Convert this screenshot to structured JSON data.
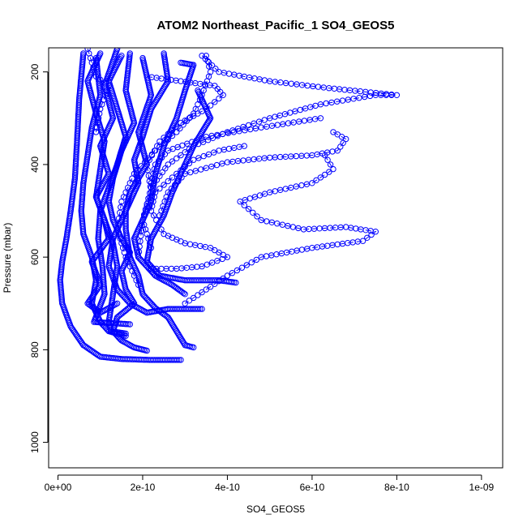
{
  "chart_data": {
    "type": "scatter",
    "title": "ATOM2 Northeast_Pacific_1 SO4_GEOS5",
    "xlabel": "SO4_GEOS5",
    "ylabel": "Pressure (mbar)",
    "xlim": [
      -2.2e-11,
      1.05e-09
    ],
    "ylim": [
      1055,
      148
    ],
    "y_reversed": true,
    "grid": false,
    "marker": "open-circle",
    "series_color": "#0000ff",
    "x_ticks": [
      {
        "value": 0,
        "label": "0e+00"
      },
      {
        "value": 2e-10,
        "label": "2e-10"
      },
      {
        "value": 4e-10,
        "label": "4e-10"
      },
      {
        "value": 6e-10,
        "label": "6e-10"
      },
      {
        "value": 8e-10,
        "label": "8e-10"
      },
      {
        "value": 1e-09,
        "label": "1e-09"
      }
    ],
    "y_ticks": [
      {
        "value": 200,
        "label": "200"
      },
      {
        "value": 400,
        "label": "400"
      },
      {
        "value": 600,
        "label": "600"
      },
      {
        "value": 800,
        "label": "800"
      },
      {
        "value": 1000,
        "label": "1000"
      }
    ],
    "series": [
      {
        "dense": true,
        "points": [
          [
            1.4e-10,
            150
          ],
          [
            1.1e-10,
            230
          ],
          [
            1.3e-10,
            300
          ],
          [
            1e-10,
            360
          ],
          [
            1.2e-10,
            420
          ],
          [
            9e-11,
            470
          ],
          [
            1.1e-10,
            520
          ],
          [
            1.2e-10,
            560
          ],
          [
            8e-11,
            610
          ],
          [
            1e-10,
            660
          ],
          [
            7e-11,
            700
          ],
          [
            1e-10,
            720
          ],
          [
            1.4e-10,
            700
          ]
        ]
      },
      {
        "dense": true,
        "points": [
          [
            6e-11,
            160
          ],
          [
            5e-11,
            260
          ],
          [
            4.5e-11,
            350
          ],
          [
            4e-11,
            430
          ],
          [
            3e-11,
            500
          ],
          [
            2e-11,
            560
          ],
          [
            1e-11,
            610
          ],
          [
            5e-12,
            650
          ],
          [
            1e-11,
            700
          ],
          [
            3e-11,
            750
          ],
          [
            6e-11,
            790
          ],
          [
            1e-10,
            815
          ],
          [
            1.5e-10,
            820
          ],
          [
            2.2e-10,
            822
          ],
          [
            2.9e-10,
            822
          ]
        ]
      },
      {
        "dense": true,
        "points": [
          [
            1.7e-10,
            160
          ],
          [
            1.6e-10,
            240
          ],
          [
            1.8e-10,
            310
          ],
          [
            1.5e-10,
            370
          ],
          [
            1.3e-10,
            430
          ],
          [
            1.2e-10,
            480
          ],
          [
            1.3e-10,
            520
          ],
          [
            1.5e-10,
            560
          ],
          [
            1.7e-10,
            590
          ],
          [
            1.5e-10,
            630
          ],
          [
            1.6e-10,
            670
          ],
          [
            1.8e-10,
            700
          ],
          [
            1.4e-10,
            730
          ],
          [
            1.3e-10,
            760
          ],
          [
            1.5e-10,
            780
          ],
          [
            1.8e-10,
            795
          ],
          [
            2.1e-10,
            802
          ]
        ]
      },
      {
        "dense": true,
        "points": [
          [
            2e-10,
            170
          ],
          [
            2.2e-10,
            250
          ],
          [
            1.9e-10,
            330
          ],
          [
            2.1e-10,
            400
          ],
          [
            1.7e-10,
            460
          ],
          [
            1.6e-10,
            500
          ],
          [
            1.6e-10,
            540
          ],
          [
            1.7e-10,
            600
          ],
          [
            1.9e-10,
            640
          ],
          [
            2e-10,
            680
          ],
          [
            2.3e-10,
            710
          ],
          [
            2.6e-10,
            730
          ],
          [
            2.8e-10,
            760
          ],
          [
            3e-10,
            790
          ],
          [
            3.2e-10,
            795
          ]
        ]
      },
      {
        "dense": true,
        "points": [
          [
            2.9e-10,
            180
          ],
          [
            3.2e-10,
            185
          ],
          [
            3e-10,
            240
          ],
          [
            2.8e-10,
            300
          ],
          [
            2.5e-10,
            360
          ],
          [
            2.3e-10,
            420
          ],
          [
            2.2e-10,
            480
          ],
          [
            2e-10,
            520
          ],
          [
            1.8e-10,
            560
          ],
          [
            1.9e-10,
            600
          ],
          [
            2.3e-10,
            640
          ],
          [
            2.7e-10,
            660
          ],
          [
            3e-10,
            680
          ]
        ]
      },
      {
        "dense": true,
        "points": [
          [
            3.3e-10,
            240
          ],
          [
            3.6e-10,
            300
          ],
          [
            3.2e-10,
            360
          ],
          [
            2.9e-10,
            420
          ],
          [
            2.7e-10,
            460
          ],
          [
            2.5e-10,
            510
          ],
          [
            2.2e-10,
            560
          ],
          [
            2.1e-10,
            610
          ],
          [
            2.4e-10,
            640
          ],
          [
            3e-10,
            650
          ],
          [
            3.8e-10,
            650
          ],
          [
            4.2e-10,
            655
          ]
        ]
      },
      {
        "dense": true,
        "points": [
          [
            9e-11,
            170
          ],
          [
            1e-10,
            250
          ],
          [
            8e-11,
            320
          ],
          [
            7e-11,
            380
          ],
          [
            6e-11,
            440
          ],
          [
            5.5e-11,
            500
          ],
          [
            6e-11,
            550
          ],
          [
            8e-11,
            600
          ],
          [
            9e-11,
            650
          ],
          [
            8e-11,
            700
          ],
          [
            1e-10,
            740
          ],
          [
            1.2e-10,
            760
          ],
          [
            1.6e-10,
            770
          ]
        ]
      },
      {
        "dense": true,
        "points": [
          [
            2.5e-10,
            160
          ],
          [
            2.6e-10,
            220
          ],
          [
            2.2e-10,
            280
          ],
          [
            2e-10,
            340
          ],
          [
            1.8e-10,
            390
          ],
          [
            1.9e-10,
            440
          ],
          [
            1.7e-10,
            480
          ],
          [
            1.5e-10,
            520
          ],
          [
            1.3e-10,
            560
          ],
          [
            1.2e-10,
            620
          ],
          [
            1.4e-10,
            670
          ],
          [
            1.7e-10,
            700
          ],
          [
            2.1e-10,
            720
          ],
          [
            2.6e-10,
            712
          ],
          [
            3.4e-10,
            712
          ]
        ]
      },
      {
        "dense": true,
        "points": [
          [
            1.5e-10,
            165
          ],
          [
            1.2e-10,
            220
          ],
          [
            1.4e-10,
            280
          ],
          [
            1.6e-10,
            340
          ],
          [
            1.4e-10,
            400
          ],
          [
            1.2e-10,
            450
          ],
          [
            1e-10,
            500
          ],
          [
            9.5e-11,
            560
          ],
          [
            1.05e-10,
            620
          ],
          [
            1.1e-10,
            680
          ],
          [
            8.5e-11,
            740
          ],
          [
            1.2e-10,
            742
          ],
          [
            1.7e-10,
            745
          ]
        ]
      },
      {
        "dense": true,
        "points": [
          [
            1e-10,
            160
          ],
          [
            7e-11,
            220
          ],
          [
            9e-11,
            290
          ],
          [
            1.1e-10,
            350
          ],
          [
            1e-10,
            410
          ],
          [
            9e-11,
            470
          ],
          [
            1.1e-10,
            520
          ],
          [
            1.3e-10,
            570
          ],
          [
            1.4e-10,
            620
          ],
          [
            1.3e-10,
            680
          ],
          [
            1.2e-10,
            740
          ],
          [
            1.25e-10,
            760
          ],
          [
            1.6e-10,
            765
          ]
        ]
      },
      {
        "dense": false,
        "points": [
          [
            3.4e-10,
            165
          ],
          [
            3.8e-10,
            200
          ],
          [
            5e-10,
            220
          ],
          [
            6.4e-10,
            235
          ],
          [
            8e-10,
            250
          ],
          [
            7.5e-10,
            250
          ],
          [
            6.2e-10,
            270
          ],
          [
            5e-10,
            300
          ],
          [
            4e-10,
            330
          ],
          [
            3.2e-10,
            360
          ],
          [
            2.6e-10,
            400
          ],
          [
            2.2e-10,
            450
          ],
          [
            2e-10,
            520
          ],
          [
            1.9e-10,
            600
          ]
        ]
      },
      {
        "dense": false,
        "points": [
          [
            3.5e-10,
            165
          ],
          [
            3.6e-10,
            200
          ],
          [
            3.4e-10,
            250
          ],
          [
            3.2e-10,
            290
          ],
          [
            2.8e-10,
            330
          ],
          [
            2.3e-10,
            370
          ],
          [
            1.8e-10,
            420
          ],
          [
            1.5e-10,
            480
          ],
          [
            1.4e-10,
            540
          ],
          [
            1.6e-10,
            600
          ],
          [
            1.9e-10,
            660
          ]
        ]
      },
      {
        "dense": false,
        "points": [
          [
            2.1e-10,
            210
          ],
          [
            2.9e-10,
            220
          ],
          [
            3.7e-10,
            230
          ],
          [
            3.9e-10,
            250
          ],
          [
            3.5e-10,
            280
          ],
          [
            2.9e-10,
            310
          ],
          [
            2.4e-10,
            350
          ],
          [
            2.1e-10,
            400
          ],
          [
            2.2e-10,
            460
          ],
          [
            2e-10,
            520
          ],
          [
            2.2e-10,
            580
          ]
        ]
      },
      {
        "dense": false,
        "points": [
          [
            6.2e-10,
            300
          ],
          [
            4.8e-10,
            320
          ],
          [
            3.5e-10,
            340
          ],
          [
            2.6e-10,
            370
          ],
          [
            2.3e-10,
            400
          ],
          [
            2.2e-10,
            440
          ]
        ]
      },
      {
        "dense": false,
        "points": [
          [
            6.5e-10,
            330
          ],
          [
            6.8e-10,
            345
          ],
          [
            6.6e-10,
            370
          ],
          [
            6e-10,
            380
          ],
          [
            5e-10,
            385
          ],
          [
            4e-10,
            395
          ],
          [
            3e-10,
            420
          ],
          [
            2.6e-10,
            460
          ],
          [
            2.4e-10,
            510
          ]
        ]
      },
      {
        "dense": false,
        "points": [
          [
            6.3e-10,
            380
          ],
          [
            6.5e-10,
            410
          ],
          [
            6e-10,
            440
          ],
          [
            5e-10,
            460
          ],
          [
            4.3e-10,
            480
          ],
          [
            4.8e-10,
            520
          ],
          [
            5.8e-10,
            540
          ],
          [
            6.8e-10,
            535
          ],
          [
            7.5e-10,
            545
          ],
          [
            7.2e-10,
            565
          ],
          [
            6e-10,
            580
          ],
          [
            4.8e-10,
            600
          ],
          [
            4e-10,
            640
          ],
          [
            3.5e-10,
            670
          ],
          [
            3e-10,
            700
          ]
        ]
      },
      {
        "dense": false,
        "points": [
          [
            4.4e-10,
            360
          ],
          [
            3.8e-10,
            370
          ],
          [
            3.2e-10,
            390
          ],
          [
            2.8e-10,
            420
          ],
          [
            2.3e-10,
            460
          ],
          [
            2.2e-10,
            500
          ],
          [
            2.5e-10,
            550
          ],
          [
            3e-10,
            570
          ],
          [
            3.6e-10,
            580
          ],
          [
            4e-10,
            600
          ],
          [
            3.4e-10,
            620
          ],
          [
            2.8e-10,
            625
          ],
          [
            2.2e-10,
            625
          ]
        ]
      },
      {
        "dense": false,
        "points": [
          [
            7e-11,
            150
          ],
          [
            9e-11,
            210
          ],
          [
            1.2e-10,
            230
          ],
          [
            1e-10,
            280
          ],
          [
            9e-11,
            330
          ]
        ]
      }
    ]
  }
}
